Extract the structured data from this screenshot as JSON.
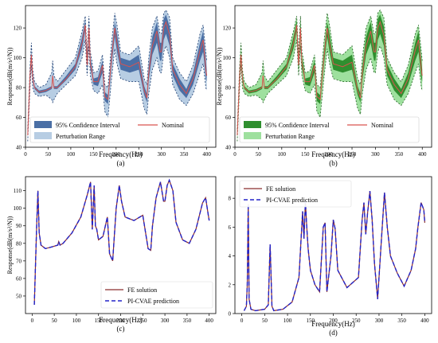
{
  "panel_tags": [
    "(a)",
    "(b)",
    "(c)",
    "(d)"
  ],
  "colors": {
    "ci_blue": "#4a6fa5",
    "range_blue": "#b7cde3",
    "ci_green": "#2f8f2f",
    "range_green": "#9ee09e",
    "nominal": "#d9534f",
    "fe": "#8b2e2e",
    "pred": "#2323c8",
    "envelope_edge": "#1a3a6e"
  },
  "chart_data": [
    {
      "type": "area",
      "panel": "(a)",
      "xlabel": "Frequency(Hz)",
      "ylabel": "Response(dB(m/s²/N))",
      "xlim": [
        0,
        420
      ],
      "ylim": [
        40,
        135
      ],
      "xticks": [
        0,
        50,
        100,
        150,
        200,
        250,
        300,
        350,
        400
      ],
      "yticks": [
        40,
        60,
        80,
        100,
        120
      ],
      "x": [
        5,
        10,
        13,
        16,
        20,
        30,
        45,
        58,
        60,
        63,
        70,
        90,
        110,
        125,
        132,
        136,
        140,
        143,
        146,
        150,
        160,
        170,
        175,
        182,
        190,
        197,
        202,
        210,
        230,
        250,
        262,
        268,
        272,
        280,
        290,
        297,
        300,
        305,
        310,
        318,
        325,
        340,
        355,
        370,
        385,
        392,
        398,
        400
      ],
      "series": [
        {
          "name": "Nominal",
          "values": [
            48,
            88,
            102,
            86,
            80,
            77,
            78,
            80,
            88,
            80,
            80,
            86,
            94,
            110,
            122,
            95,
            120,
            96,
            92,
            84,
            84,
            95,
            74,
            72,
            100,
            120,
            110,
            96,
            94,
            97,
            78,
            73,
            90,
            108,
            118,
            104,
            104,
            120,
            124,
            115,
            92,
            82,
            76,
            86,
            105,
            112,
            92,
            88
          ]
        },
        {
          "name": "95% Confidence Interval",
          "lower": [
            47,
            86,
            99,
            84,
            79,
            76,
            77,
            79,
            86,
            79,
            79,
            85,
            92,
            106,
            118,
            92,
            115,
            93,
            89,
            82,
            81,
            90,
            71,
            69,
            95,
            114,
            104,
            92,
            90,
            92,
            75,
            70,
            85,
            102,
            110,
            98,
            98,
            112,
            116,
            108,
            88,
            78,
            73,
            82,
            98,
            104,
            86,
            84
          ],
          "upper": [
            49,
            90,
            104,
            88,
            81,
            78,
            79,
            81,
            90,
            81,
            81,
            88,
            96,
            114,
            125,
            98,
            124,
            100,
            95,
            86,
            87,
            98,
            77,
            75,
            104,
            124,
            116,
            100,
            98,
            102,
            81,
            76,
            94,
            114,
            124,
            110,
            110,
            126,
            129,
            121,
            96,
            86,
            79,
            90,
            110,
            118,
            98,
            92
          ]
        },
        {
          "name": "Perturbation Range",
          "lower": [
            44,
            80,
            95,
            80,
            76,
            74,
            75,
            72,
            70,
            72,
            76,
            82,
            88,
            100,
            112,
            88,
            108,
            88,
            84,
            78,
            76,
            82,
            64,
            60,
            86,
            106,
            96,
            86,
            84,
            84,
            66,
            62,
            76,
            92,
            100,
            90,
            90,
            104,
            108,
            100,
            82,
            72,
            68,
            76,
            90,
            96,
            80,
            78
          ],
          "upper": [
            52,
            94,
            110,
            92,
            84,
            80,
            82,
            90,
            98,
            88,
            84,
            92,
            100,
            118,
            128,
            102,
            128,
            104,
            99,
            90,
            91,
            102,
            82,
            80,
            110,
            130,
            122,
            104,
            102,
            108,
            86,
            82,
            100,
            120,
            128,
            116,
            116,
            130,
            132,
            127,
            100,
            90,
            84,
            95,
            116,
            122,
            104,
            98
          ]
        }
      ],
      "legend": [
        "95% Confidence Interval",
        "Nominal",
        "Perturbation Range"
      ],
      "legend_position": "bottom-left"
    },
    {
      "type": "area",
      "panel": "(b)",
      "xlabel": "Frequency(Hz)",
      "ylabel": "Response(dB(m/s²/N))",
      "xlim": [
        0,
        420
      ],
      "ylim": [
        40,
        135
      ],
      "xticks": [
        0,
        50,
        100,
        150,
        200,
        250,
        300,
        350,
        400
      ],
      "yticks": [
        40,
        60,
        80,
        100,
        120
      ],
      "same_data_as": "(a)",
      "legend": [
        "95% Confidence Interval",
        "Nominal",
        "Perturbation Range"
      ],
      "legend_position": "bottom-left"
    },
    {
      "type": "line",
      "panel": "(c)",
      "xlabel": "Frequency(Hz)",
      "ylabel": "Response(dB(m/s²/N))",
      "xlim": [
        -15,
        415
      ],
      "ylim": [
        40,
        118
      ],
      "xticks": [
        0,
        50,
        100,
        150,
        200,
        250,
        300,
        350,
        400
      ],
      "yticks": [
        50,
        60,
        70,
        80,
        90,
        100,
        110
      ],
      "x": [
        5,
        10,
        13,
        16,
        20,
        30,
        45,
        58,
        60,
        63,
        70,
        90,
        110,
        125,
        132,
        136,
        140,
        143,
        146,
        150,
        160,
        170,
        175,
        182,
        190,
        197,
        202,
        210,
        230,
        250,
        262,
        268,
        272,
        280,
        290,
        297,
        300,
        305,
        310,
        318,
        325,
        340,
        355,
        370,
        385,
        392,
        398,
        400
      ],
      "series": [
        {
          "name": "FE solution",
          "values": [
            45,
            88,
            110,
            86,
            79,
            77,
            78,
            79,
            81,
            79,
            80,
            86,
            95,
            108,
            115,
            88,
            113,
            90,
            88,
            82,
            84,
            95,
            74,
            70,
            100,
            113,
            104,
            95,
            93,
            96,
            77,
            76,
            90,
            106,
            115,
            104,
            104,
            113,
            116,
            110,
            92,
            82,
            80,
            88,
            103,
            106,
            96,
            93
          ]
        },
        {
          "name": "PI-CVAE prediction",
          "values": [
            45,
            88,
            110,
            86,
            79,
            77,
            78,
            79,
            81,
            79,
            80,
            86,
            95,
            108,
            115,
            88,
            113,
            90,
            88,
            82,
            84,
            95,
            74,
            70,
            100,
            113,
            104,
            95,
            93,
            96,
            77,
            76,
            90,
            106,
            115,
            104,
            104,
            113,
            116,
            110,
            92,
            82,
            80,
            88,
            103,
            106,
            96,
            93
          ]
        }
      ],
      "legend": [
        "FE solution",
        "PI-CVAE prediction"
      ],
      "legend_position": "bottom-center"
    },
    {
      "type": "line",
      "panel": "(d)",
      "xlabel": "Frequency(Hz)",
      "ylabel": "",
      "xlim": [
        -15,
        415
      ],
      "ylim": [
        0,
        9.5
      ],
      "xticks": [
        0,
        50,
        100,
        150,
        200,
        250,
        300,
        350,
        400
      ],
      "yticks": [
        0,
        2,
        4,
        6,
        8
      ],
      "x": [
        5,
        10,
        12,
        14,
        16,
        20,
        30,
        50,
        58,
        62,
        66,
        70,
        90,
        110,
        125,
        133,
        136,
        139,
        142,
        145,
        150,
        160,
        170,
        178,
        182,
        186,
        195,
        200,
        204,
        210,
        230,
        255,
        263,
        267,
        271,
        275,
        280,
        285,
        290,
        297,
        305,
        312,
        318,
        325,
        340,
        355,
        370,
        380,
        385,
        392,
        398,
        400
      ],
      "series": [
        {
          "name": "FE solution",
          "values": [
            0.2,
            0.5,
            2.0,
            7.6,
            1.0,
            0.3,
            0.2,
            0.3,
            0.6,
            4.8,
            0.5,
            0.2,
            0.3,
            0.8,
            2.5,
            7.1,
            5.2,
            7.8,
            6.0,
            4.5,
            3.0,
            2.0,
            1.5,
            6.0,
            6.3,
            1.5,
            4.0,
            6.5,
            5.9,
            3.0,
            1.8,
            2.5,
            6.5,
            7.7,
            5.5,
            7.0,
            8.5,
            6.5,
            3.5,
            1.0,
            5.0,
            8.4,
            6.0,
            4.0,
            2.8,
            1.9,
            3.0,
            4.5,
            6.0,
            7.7,
            7.2,
            6.3
          ]
        },
        {
          "name": "PI-CVAE prediction",
          "values": [
            0.2,
            0.5,
            2.0,
            7.6,
            1.0,
            0.3,
            0.2,
            0.3,
            0.6,
            4.8,
            0.5,
            0.2,
            0.3,
            0.8,
            2.5,
            7.1,
            5.2,
            7.8,
            6.0,
            4.5,
            3.0,
            2.0,
            1.5,
            6.0,
            6.3,
            1.5,
            4.0,
            6.5,
            5.9,
            3.0,
            1.8,
            2.5,
            6.5,
            7.7,
            5.5,
            7.0,
            8.5,
            6.5,
            3.5,
            1.0,
            5.0,
            8.4,
            6.0,
            4.0,
            2.8,
            1.9,
            3.0,
            4.5,
            6.0,
            7.7,
            7.2,
            6.3
          ]
        }
      ],
      "legend": [
        "FE solution",
        "PI-CVAE prediction"
      ],
      "legend_position": "top-left"
    }
  ]
}
